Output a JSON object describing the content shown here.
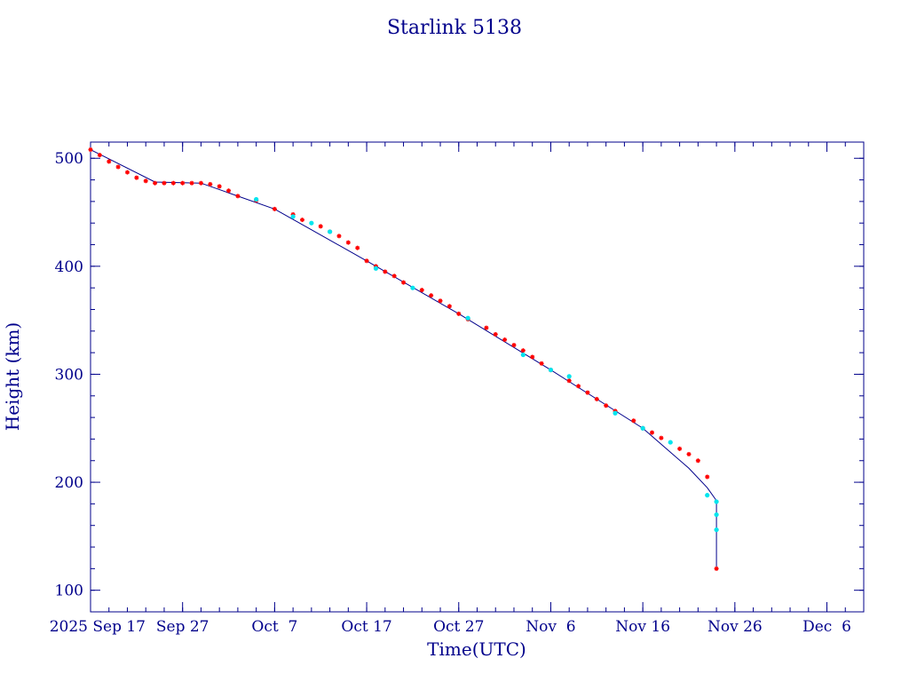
{
  "chart_data": {
    "type": "scatter",
    "title": "Starlink 5138",
    "xlabel": "Time(UTC)",
    "ylabel": "Height (km)",
    "xlim": [
      "2025-09-17",
      "2025-12-10"
    ],
    "ylim": [
      80,
      515
    ],
    "x_ticks": [
      "2025-09-17",
      "2025-09-27",
      "2025-10-07",
      "2025-10-17",
      "2025-10-27",
      "2025-11-06",
      "2025-11-16",
      "2025-11-26",
      "2025-12-06"
    ],
    "x_tick_labels": [
      "2025 Sep 17",
      "Sep 27",
      "Oct  7",
      "Oct 17",
      "Oct 27",
      "Nov  6",
      "Nov 16",
      "Nov 26",
      "Dec  6"
    ],
    "y_ticks": [
      100,
      200,
      300,
      400,
      500
    ],
    "y_tick_labels": [
      "100",
      "200",
      "300",
      "400",
      "500"
    ],
    "grid": false,
    "colors": {
      "text": "#00008b",
      "axes": "#00008b",
      "line": "#00008b",
      "primary_marker": "#ff0000",
      "secondary_marker": "#00e5ee"
    },
    "series": [
      {
        "type": "line",
        "x": [
          "2025-09-17",
          "2025-09-24",
          "2025-09-29",
          "2025-10-07",
          "2025-10-17",
          "2025-10-27",
          "2025-11-06",
          "2025-11-16",
          "2025-11-21",
          "2025-11-23",
          "2025-11-24",
          "2025-11-24",
          "2025-11-24"
        ],
        "y": [
          508,
          478,
          477,
          453,
          405,
          356,
          304,
          250,
          213,
          195,
          183,
          160,
          120
        ]
      },
      {
        "type": "scatter",
        "x": [
          "2025-09-17",
          "2025-09-18",
          "2025-09-19",
          "2025-09-20",
          "2025-09-21",
          "2025-09-22",
          "2025-09-23",
          "2025-09-24",
          "2025-09-25",
          "2025-09-26",
          "2025-09-27",
          "2025-09-28",
          "2025-09-29",
          "2025-09-30",
          "2025-10-01",
          "2025-10-02",
          "2025-10-03",
          "2025-10-05",
          "2025-10-07",
          "2025-10-09",
          "2025-10-10",
          "2025-10-12",
          "2025-10-13",
          "2025-10-14",
          "2025-10-15",
          "2025-10-16",
          "2025-10-17",
          "2025-10-18",
          "2025-10-19",
          "2025-10-20",
          "2025-10-21",
          "2025-10-23",
          "2025-10-24",
          "2025-10-25",
          "2025-10-26",
          "2025-10-27",
          "2025-10-28",
          "2025-10-30",
          "2025-10-31",
          "2025-11-01",
          "2025-11-02",
          "2025-11-03",
          "2025-11-04",
          "2025-11-05",
          "2025-11-06",
          "2025-11-08",
          "2025-11-09",
          "2025-11-10",
          "2025-11-11",
          "2025-11-12",
          "2025-11-13",
          "2025-11-15",
          "2025-11-16",
          "2025-11-17",
          "2025-11-18",
          "2025-11-20",
          "2025-11-21",
          "2025-11-22",
          "2025-11-23",
          "2025-11-24"
        ],
        "y": [
          508,
          503,
          497,
          492,
          487,
          482,
          479,
          477,
          477,
          477,
          477,
          477,
          477,
          476,
          474,
          470,
          465,
          461,
          453,
          448,
          443,
          437,
          432,
          428,
          422,
          417,
          405,
          400,
          395,
          391,
          385,
          378,
          373,
          368,
          363,
          356,
          351,
          343,
          337,
          332,
          327,
          322,
          316,
          310,
          304,
          294,
          289,
          283,
          277,
          271,
          266,
          257,
          250,
          246,
          241,
          231,
          226,
          220,
          205,
          120
        ]
      },
      {
        "type": "scatter",
        "x": [
          "2025-10-05",
          "2025-10-09",
          "2025-10-11",
          "2025-10-13",
          "2025-10-18",
          "2025-10-22",
          "2025-10-28",
          "2025-11-03",
          "2025-11-06",
          "2025-11-08",
          "2025-11-13",
          "2025-11-16",
          "2025-11-19",
          "2025-11-23",
          "2025-11-24",
          "2025-11-24",
          "2025-11-24"
        ],
        "y": [
          462,
          446,
          440,
          432,
          398,
          380,
          352,
          318,
          304,
          298,
          264,
          250,
          237,
          188,
          182,
          170,
          156
        ]
      }
    ]
  }
}
